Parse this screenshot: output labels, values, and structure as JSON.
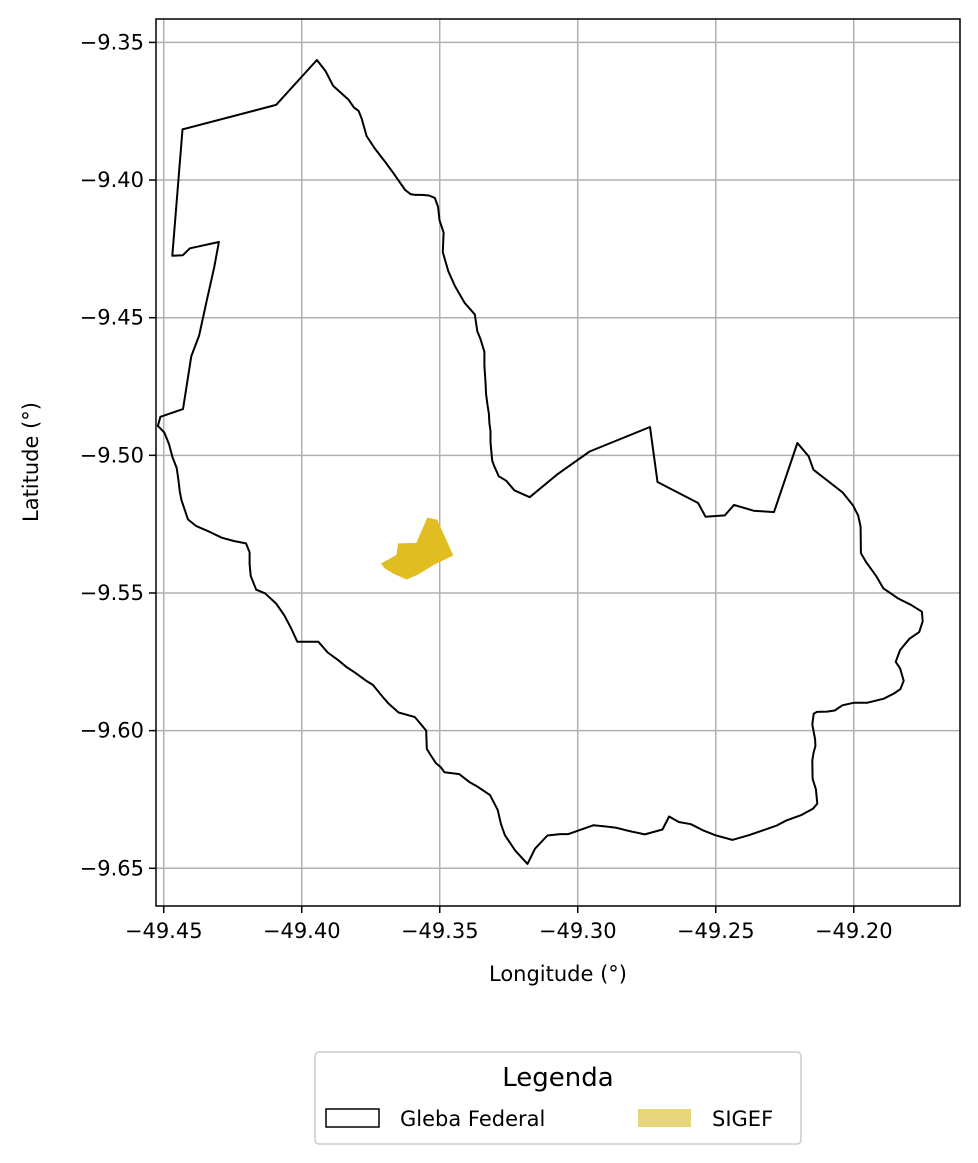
{
  "chart_data": {
    "type": "map",
    "xlabel": "Longitude (°)",
    "ylabel": "Latitude (°)",
    "xlim": [
      -49.4528,
      -49.1615
    ],
    "ylim": [
      -9.6637,
      -9.3415
    ],
    "grid": true,
    "x_ticks": [
      -49.45,
      -49.4,
      -49.35,
      -49.3,
      -49.25,
      -49.2
    ],
    "x_tick_labels": [
      "−49.45",
      "−49.40",
      "−49.35",
      "−49.30",
      "−49.25",
      "−49.20"
    ],
    "y_ticks": [
      -9.35,
      -9.4,
      -9.45,
      -9.5,
      -9.55,
      -9.6,
      -9.65
    ],
    "y_tick_labels": [
      "−9.35",
      "−9.40",
      "−9.45",
      "−9.50",
      "−9.55",
      "−9.60",
      "−9.65"
    ],
    "legend": {
      "title": "Legenda",
      "placement": "bottom-center-below",
      "entries": [
        {
          "label": "Gleba Federal",
          "style": "outline",
          "color": "#000000"
        },
        {
          "label": "SIGEF",
          "style": "fill",
          "color": "#e8d47a"
        }
      ]
    },
    "layers": [
      {
        "name": "Gleba Federal",
        "style": "outline",
        "stroke": "#000000",
        "fill": "none",
        "polygon": [
          [
            -49.4432,
            -9.3816
          ],
          [
            -49.4093,
            -9.3727
          ],
          [
            -49.3945,
            -9.3564
          ],
          [
            -49.3914,
            -9.3604
          ],
          [
            -49.3886,
            -9.3658
          ],
          [
            -49.383,
            -9.3709
          ],
          [
            -49.3811,
            -9.3736
          ],
          [
            -49.3794,
            -9.3749
          ],
          [
            -49.3783,
            -9.3776
          ],
          [
            -49.3765,
            -9.384
          ],
          [
            -49.3734,
            -9.3887
          ],
          [
            -49.3697,
            -9.3935
          ],
          [
            -49.3667,
            -9.3976
          ],
          [
            -49.3645,
            -9.4008
          ],
          [
            -49.3625,
            -9.4036
          ],
          [
            -49.3606,
            -9.4051
          ],
          [
            -49.3589,
            -9.4054
          ],
          [
            -49.3565,
            -9.4054
          ],
          [
            -49.3539,
            -9.4056
          ],
          [
            -49.3518,
            -9.4065
          ],
          [
            -49.3506,
            -9.4098
          ],
          [
            -49.3501,
            -9.4146
          ],
          [
            -49.3486,
            -9.419
          ],
          [
            -49.3489,
            -9.4262
          ],
          [
            -49.3469,
            -9.4331
          ],
          [
            -49.3445,
            -9.4385
          ],
          [
            -49.3409,
            -9.4447
          ],
          [
            -49.3373,
            -9.4488
          ],
          [
            -49.3364,
            -9.4549
          ],
          [
            -49.3352,
            -9.4579
          ],
          [
            -49.3338,
            -9.4624
          ],
          [
            -49.3338,
            -9.4675
          ],
          [
            -49.3334,
            -9.4734
          ],
          [
            -49.3332,
            -9.4778
          ],
          [
            -49.3327,
            -9.4817
          ],
          [
            -49.3322,
            -9.4849
          ],
          [
            -49.332,
            -9.4883
          ],
          [
            -49.3316,
            -9.4912
          ],
          [
            -49.3316,
            -9.4953
          ],
          [
            -49.331,
            -9.5019
          ],
          [
            -49.3302,
            -9.5041
          ],
          [
            -49.3286,
            -9.5076
          ],
          [
            -49.3259,
            -9.5092
          ],
          [
            -49.323,
            -9.5127
          ],
          [
            -49.3174,
            -9.5152
          ],
          [
            -49.3075,
            -9.507
          ],
          [
            -49.2957,
            -9.4986
          ],
          [
            -49.2738,
            -9.4897
          ],
          [
            -49.2711,
            -9.5097
          ],
          [
            -49.2564,
            -9.5173
          ],
          [
            -49.2537,
            -9.5223
          ],
          [
            -49.2467,
            -9.5218
          ],
          [
            -49.2434,
            -9.518
          ],
          [
            -49.2363,
            -9.5201
          ],
          [
            -49.2289,
            -9.5206
          ],
          [
            -49.2204,
            -9.4955
          ],
          [
            -49.2163,
            -9.5004
          ],
          [
            -49.2146,
            -9.5052
          ],
          [
            -49.204,
            -9.5135
          ],
          [
            -49.2003,
            -9.5181
          ],
          [
            -49.1984,
            -9.5219
          ],
          [
            -49.1975,
            -9.5259
          ],
          [
            -49.1974,
            -9.5355
          ],
          [
            -49.1955,
            -9.5388
          ],
          [
            -49.1919,
            -9.5438
          ],
          [
            -49.1893,
            -9.5483
          ],
          [
            -49.1839,
            -9.552
          ],
          [
            -49.1793,
            -9.5543
          ],
          [
            -49.1753,
            -9.5568
          ],
          [
            -49.175,
            -9.5603
          ],
          [
            -49.1763,
            -9.5642
          ],
          [
            -49.1798,
            -9.5666
          ],
          [
            -49.1832,
            -9.5707
          ],
          [
            -49.1848,
            -9.575
          ],
          [
            -49.1832,
            -9.5774
          ],
          [
            -49.1819,
            -9.5819
          ],
          [
            -49.1831,
            -9.5849
          ],
          [
            -49.1854,
            -9.5865
          ],
          [
            -49.1891,
            -9.5884
          ],
          [
            -49.1952,
            -9.5899
          ],
          [
            -49.2001,
            -9.5899
          ],
          [
            -49.2041,
            -9.5908
          ],
          [
            -49.2069,
            -9.5927
          ],
          [
            -49.2096,
            -9.5931
          ],
          [
            -49.2133,
            -9.5932
          ],
          [
            -49.2145,
            -9.5939
          ],
          [
            -49.215,
            -9.5978
          ],
          [
            -49.214,
            -9.6031
          ],
          [
            -49.2139,
            -9.6056
          ],
          [
            -49.2145,
            -9.6078
          ],
          [
            -49.215,
            -9.6109
          ],
          [
            -49.2149,
            -9.6175
          ],
          [
            -49.2137,
            -9.6213
          ],
          [
            -49.2132,
            -9.6265
          ],
          [
            -49.2148,
            -9.6284
          ],
          [
            -49.2189,
            -9.6306
          ],
          [
            -49.2246,
            -9.6327
          ],
          [
            -49.2277,
            -9.6344
          ],
          [
            -49.238,
            -9.638
          ],
          [
            -49.244,
            -9.6397
          ],
          [
            -49.2502,
            -9.638
          ],
          [
            -49.2544,
            -9.6363
          ],
          [
            -49.259,
            -9.634
          ],
          [
            -49.2634,
            -9.6332
          ],
          [
            -49.2669,
            -9.6312
          ],
          [
            -49.2693,
            -9.6359
          ],
          [
            -49.2757,
            -9.6377
          ],
          [
            -49.2812,
            -9.6365
          ],
          [
            -49.286,
            -9.6353
          ],
          [
            -49.2902,
            -9.6348
          ],
          [
            -49.2944,
            -9.6344
          ],
          [
            -49.3034,
            -9.6376
          ],
          [
            -49.3063,
            -9.6376
          ],
          [
            -49.311,
            -9.6381
          ],
          [
            -49.3155,
            -9.6429
          ],
          [
            -49.3182,
            -9.6484
          ],
          [
            -49.3227,
            -9.6435
          ],
          [
            -49.3264,
            -9.638
          ],
          [
            -49.3278,
            -9.634
          ],
          [
            -49.329,
            -9.6288
          ],
          [
            -49.3318,
            -9.6234
          ],
          [
            -49.3364,
            -9.6203
          ],
          [
            -49.3392,
            -9.6187
          ],
          [
            -49.341,
            -9.6173
          ],
          [
            -49.3429,
            -9.6158
          ],
          [
            -49.3483,
            -9.6151
          ],
          [
            -49.3497,
            -9.6132
          ],
          [
            -49.3513,
            -9.6119
          ],
          [
            -49.3531,
            -9.6092
          ],
          [
            -49.3547,
            -9.6066
          ],
          [
            -49.3549,
            -9.6
          ],
          [
            -49.359,
            -9.5951
          ],
          [
            -49.3649,
            -9.5934
          ],
          [
            -49.3684,
            -9.5903
          ],
          [
            -49.3707,
            -9.5877
          ],
          [
            -49.3742,
            -9.5834
          ],
          [
            -49.3763,
            -9.5821
          ],
          [
            -49.3806,
            -9.579
          ],
          [
            -49.3839,
            -9.5768
          ],
          [
            -49.3869,
            -9.5743
          ],
          [
            -49.3906,
            -9.5716
          ],
          [
            -49.394,
            -9.5677
          ],
          [
            -49.4016,
            -9.5677
          ],
          [
            -49.4038,
            -9.5629
          ],
          [
            -49.4062,
            -9.5583
          ],
          [
            -49.4093,
            -9.5538
          ],
          [
            -49.4133,
            -9.5501
          ],
          [
            -49.4165,
            -9.5488
          ],
          [
            -49.4185,
            -9.5438
          ],
          [
            -49.4189,
            -9.5394
          ],
          [
            -49.4189,
            -9.5352
          ],
          [
            -49.4202,
            -9.532
          ],
          [
            -49.4246,
            -9.5311
          ],
          [
            -49.429,
            -9.5299
          ],
          [
            -49.4332,
            -9.5279
          ],
          [
            -49.4382,
            -9.5257
          ],
          [
            -49.4412,
            -9.5233
          ],
          [
            -49.4436,
            -9.5162
          ],
          [
            -49.4442,
            -9.5129
          ],
          [
            -49.4447,
            -9.5089
          ],
          [
            -49.4453,
            -9.5046
          ],
          [
            -49.4468,
            -9.5008
          ],
          [
            -49.4481,
            -9.4959
          ],
          [
            -49.4498,
            -9.4917
          ],
          [
            -49.4521,
            -9.4893
          ],
          [
            -49.4512,
            -9.486
          ],
          [
            -49.443,
            -9.4832
          ],
          [
            -49.44,
            -9.464
          ],
          [
            -49.4372,
            -9.4565
          ],
          [
            -49.4345,
            -9.4442
          ],
          [
            -49.4317,
            -9.4317
          ],
          [
            -49.43,
            -9.4225
          ],
          [
            -49.4405,
            -9.4248
          ],
          [
            -49.4431,
            -9.4273
          ],
          [
            -49.4469,
            -9.4275
          ],
          [
            -49.4432,
            -9.3816
          ]
        ]
      },
      {
        "name": "SIGEF",
        "style": "fill",
        "stroke": "none",
        "fill": "#e0bd20",
        "polygon": [
          [
            -49.3713,
            -9.5393
          ],
          [
            -49.3657,
            -9.5362
          ],
          [
            -49.3651,
            -9.532
          ],
          [
            -49.3585,
            -9.5318
          ],
          [
            -49.3545,
            -9.5226
          ],
          [
            -49.3509,
            -9.5234
          ],
          [
            -49.3451,
            -9.5364
          ],
          [
            -49.352,
            -9.5397
          ],
          [
            -49.358,
            -9.5434
          ],
          [
            -49.362,
            -9.5451
          ],
          [
            -49.3667,
            -9.543
          ],
          [
            -49.37,
            -9.541
          ],
          [
            -49.3713,
            -9.5393
          ]
        ]
      }
    ]
  }
}
